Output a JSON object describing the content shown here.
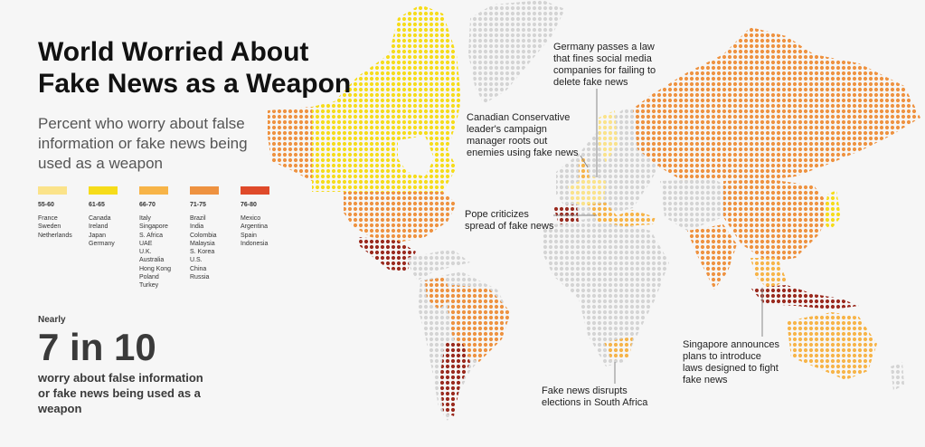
{
  "title_line1": "World Worried About",
  "title_line2": "Fake News as a Weapon",
  "subtitle": "Percent who worry about false information or fake news being used as a weapon",
  "legend": [
    {
      "range": "55-60",
      "color": "#fbe38a",
      "countries": [
        "France",
        "Sweden",
        "Netherlands"
      ]
    },
    {
      "range": "61-65",
      "color": "#f6dc1a",
      "countries": [
        "Canada",
        "Ireland",
        "Japan",
        "Germany"
      ]
    },
    {
      "range": "66-70",
      "color": "#f7b448",
      "countries": [
        "Italy",
        "Singapore",
        "S. Africa",
        "UAE",
        "U.K.",
        "Australia",
        "Hong Kong",
        "Poland",
        "Turkey"
      ]
    },
    {
      "range": "71-75",
      "color": "#ee9240",
      "countries": [
        "Brazil",
        "India",
        "Colombia",
        "Malaysia",
        "S. Korea",
        "U.S.",
        "China",
        "Russia"
      ]
    },
    {
      "range": "76-80",
      "color": "#df4a2a",
      "countries": [
        "Mexico",
        "Argentina",
        "Spain",
        "Indonesia"
      ]
    }
  ],
  "stat": {
    "nearly": "Nearly",
    "value": "7 in 10",
    "desc": "worry about false information or fake news being used as a weapon"
  },
  "annotations": {
    "germany": "Germany passes a law that fines social media companies for failing to delete fake news",
    "canada": "Canadian Conservative leader's campaign manager roots out enemies using fake news",
    "pope": "Pope criticizes spread of fake news",
    "south_africa": "Fake news disrupts elections in South Africa",
    "singapore": "Singapore announces plans to introduce laws designed to fight fake news"
  },
  "colors": {
    "no_data": "#d4d4d4",
    "annotation_line": "#888888",
    "dark_red": "#9a2a1e"
  }
}
